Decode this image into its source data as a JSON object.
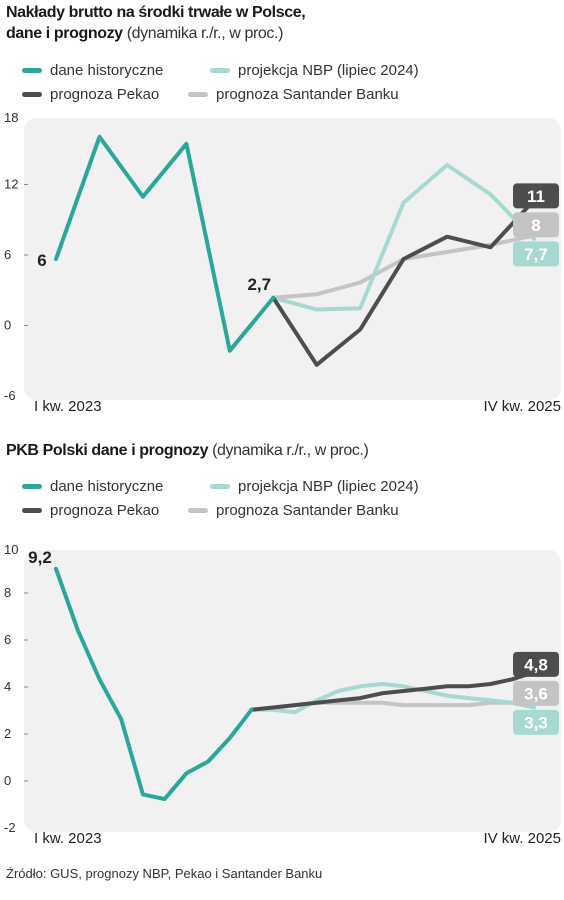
{
  "colors": {
    "historical": "#2aa69a",
    "nbp": "#a8d8d2",
    "pekao": "#4d4d4f",
    "santander": "#c4c4c4",
    "plot_bg": "#f1f1f2"
  },
  "chart1": {
    "title_bold": "Nakłady brutto na środki trwałe w Polsce,",
    "title_bold2": "dane i prognozy",
    "title_sub": "(dynamika r./r., w proc.)",
    "legend": {
      "historical": "dane historyczne",
      "nbp": "projekcja NBP (lipiec 2024)",
      "pekao": "prognoza Pekao",
      "santander": "prognoza Santander Banku"
    },
    "x_start_label": "I kw. 2023",
    "x_end_label": "IV kw. 2025"
  },
  "chart2": {
    "title_bold": "PKB Polski dane i prognozy",
    "title_sub": "(dynamika r./r., w proc.)",
    "legend": {
      "historical": "dane historyczne",
      "nbp": "projekcja NBP (lipiec 2024)",
      "pekao": "prognoza Pekao",
      "santander": "prognoza Santander Banku"
    },
    "x_start_label": "I kw. 2023",
    "x_end_label": "IV kw. 2025"
  },
  "source": "Źródło: GUS, prognozy NBP, Pekao i Santander Banku",
  "chart_data": [
    {
      "type": "line",
      "title": "Nakłady brutto na środki trwałe w Polsce, dane i prognozy (dynamika r./r., w proc.)",
      "ylim": [
        -6,
        18
      ],
      "yticks": [
        "18",
        "12",
        "6",
        "0",
        "-6"
      ],
      "grid": false,
      "legend_position": "top",
      "x_range": [
        0,
        33
      ],
      "series": [
        {
          "name": "dane historyczne",
          "key": "historical",
          "x": [
            0,
            3,
            6,
            9,
            12,
            15
          ],
          "y": [
            6,
            16.4,
            11.3,
            15.8,
            -1.8,
            2.7
          ]
        },
        {
          "name": "projekcja NBP (lipiec 2024)",
          "key": "nbp",
          "x": [
            15,
            18,
            21,
            24,
            27,
            30,
            33
          ],
          "y": [
            2.7,
            1.7,
            1.8,
            10.8,
            14.0,
            11.5,
            7.7
          ]
        },
        {
          "name": "prognoza Pekao",
          "key": "pekao",
          "x": [
            15,
            18,
            21,
            24,
            27,
            30,
            33
          ],
          "y": [
            2.7,
            -3.0,
            0.0,
            6.0,
            7.9,
            7.0,
            11
          ]
        },
        {
          "name": "prognoza Santander Banku",
          "key": "santander",
          "x": [
            15,
            18,
            21,
            24,
            27,
            30,
            33
          ],
          "y": [
            2.7,
            3.0,
            4.0,
            6.0,
            6.6,
            7.2,
            8
          ]
        }
      ],
      "labels": [
        {
          "text": "6",
          "series": "historical",
          "pos": "first"
        },
        {
          "text": "2,7",
          "series": "historical",
          "pos": "last"
        },
        {
          "text": "11",
          "series": "pekao",
          "pos": "end"
        },
        {
          "text": "8",
          "series": "santander",
          "pos": "end"
        },
        {
          "text": "7,7",
          "series": "nbp",
          "pos": "end"
        }
      ]
    },
    {
      "type": "line",
      "title": "PKB Polski dane i prognozy (dynamika r./r., w proc.)",
      "ylim": [
        -2,
        10
      ],
      "yticks": [
        "10",
        "8",
        "6",
        "4",
        "2",
        "0",
        "-2"
      ],
      "grid": false,
      "legend_position": "top",
      "x_range": [
        0,
        22
      ],
      "series": [
        {
          "name": "dane historyczne",
          "key": "historical",
          "x": [
            0,
            1,
            2,
            3,
            4,
            5,
            6,
            7,
            8,
            9
          ],
          "y": [
            9.2,
            6.6,
            4.5,
            2.8,
            -0.4,
            -0.6,
            0.5,
            1.0,
            2.0,
            3.2
          ]
        },
        {
          "name": "projekcja NBP (lipiec 2024)",
          "key": "nbp",
          "x": [
            9,
            10,
            11,
            12,
            13,
            14,
            15,
            16,
            17,
            18,
            19,
            20,
            21,
            22
          ],
          "y": [
            3.2,
            3.2,
            3.1,
            3.6,
            4.0,
            4.2,
            4.3,
            4.2,
            4.0,
            3.8,
            3.7,
            3.6,
            3.5,
            3.3
          ]
        },
        {
          "name": "prognoza Pekao",
          "key": "pekao",
          "x": [
            9,
            10,
            11,
            12,
            13,
            14,
            15,
            16,
            17,
            18,
            19,
            20,
            21,
            22
          ],
          "y": [
            3.2,
            3.3,
            3.4,
            3.5,
            3.6,
            3.7,
            3.9,
            4.0,
            4.1,
            4.2,
            4.2,
            4.3,
            4.5,
            4.8
          ]
        },
        {
          "name": "prognoza Santander Banku",
          "key": "santander",
          "x": [
            9,
            10,
            11,
            12,
            13,
            14,
            15,
            16,
            17,
            18,
            19,
            20,
            21,
            22
          ],
          "y": [
            3.2,
            3.3,
            3.4,
            3.5,
            3.5,
            3.5,
            3.5,
            3.4,
            3.4,
            3.4,
            3.4,
            3.5,
            3.5,
            3.6
          ]
        }
      ],
      "labels": [
        {
          "text": "9,2",
          "series": "historical",
          "pos": "first"
        },
        {
          "text": "4,8",
          "series": "pekao",
          "pos": "end"
        },
        {
          "text": "3,6",
          "series": "santander",
          "pos": "end"
        },
        {
          "text": "3,3",
          "series": "nbp",
          "pos": "end"
        }
      ]
    }
  ]
}
